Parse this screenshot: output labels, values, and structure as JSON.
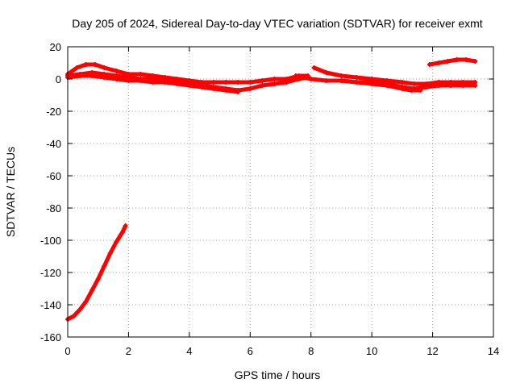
{
  "chart_data": {
    "type": "scatter",
    "title": "Day 205 of 2024, Sidereal Day-to-day VTEC variation (SDTVAR) for receiver exmt",
    "xlabel": "GPS time / hours",
    "ylabel": "SDTVAR / TECUs",
    "xlim": [
      0,
      14
    ],
    "ylim": [
      -160,
      20
    ],
    "xticks": [
      0,
      2,
      4,
      6,
      8,
      10,
      12,
      14
    ],
    "yticks": [
      20,
      0,
      -20,
      -40,
      -60,
      -80,
      -100,
      -120,
      -140,
      -160
    ],
    "grid": true,
    "marker_color": "#ff0000",
    "series": [
      {
        "name": "upper-band-a",
        "x": [
          0,
          0.3,
          0.6,
          0.9,
          1.2,
          1.6,
          2.0,
          2.4,
          2.8,
          3.2,
          3.6,
          4.0,
          4.4,
          4.8,
          5.2,
          5.6,
          6.0,
          6.4,
          6.8,
          7.2,
          7.6,
          7.9
        ],
        "y": [
          3,
          7,
          9,
          9,
          7,
          5,
          3,
          3,
          2,
          1,
          0,
          -1,
          -2,
          -2,
          -2,
          -2,
          -2,
          -1,
          0,
          0,
          2,
          2
        ]
      },
      {
        "name": "upper-band-b",
        "x": [
          0,
          0.4,
          0.8,
          1.2,
          1.6,
          2.0,
          2.4,
          2.8,
          3.2,
          3.6,
          4.0,
          4.4,
          4.8,
          5.2,
          5.6,
          6.0,
          6.4,
          6.8,
          7.2,
          7.6,
          7.9
        ],
        "y": [
          2,
          3,
          4,
          3,
          2,
          1,
          0,
          0,
          -1,
          -2,
          -3,
          -4,
          -5,
          -6,
          -7,
          -6,
          -4,
          -3,
          -2,
          0,
          1
        ]
      },
      {
        "name": "upper-band-c",
        "x": [
          0,
          0.4,
          0.8,
          1.2,
          1.6,
          2.0,
          2.4,
          2.8,
          3.2,
          3.6,
          4.0,
          4.4,
          4.8,
          5.2,
          5.6
        ],
        "y": [
          1,
          2,
          2,
          1,
          0,
          -1,
          -1,
          -2,
          -2,
          -3,
          -4,
          -5,
          -6,
          -7,
          -8
        ]
      },
      {
        "name": "mid-band-a",
        "x": [
          7.5,
          8.0,
          8.5,
          9.0,
          9.5,
          10.0,
          10.5,
          11.0,
          11.4,
          11.8,
          12.2,
          12.6,
          13.0,
          13.4
        ],
        "y": [
          2,
          0,
          -1,
          -1,
          -2,
          -2,
          -3,
          -5,
          -6,
          -5,
          -4,
          -4,
          -4,
          -4
        ]
      },
      {
        "name": "mid-band-b",
        "x": [
          8.1,
          8.5,
          9.0,
          9.5,
          10.0,
          10.5,
          11.0,
          11.4,
          11.8,
          12.2,
          12.6,
          13.0,
          13.4
        ],
        "y": [
          7,
          4,
          2,
          1,
          0,
          -1,
          -2,
          -3,
          -3,
          -2,
          -2,
          -2,
          -2
        ]
      },
      {
        "name": "mid-band-c",
        "x": [
          9.0,
          9.5,
          10.0,
          10.5,
          11.0,
          11.3,
          11.6
        ],
        "y": [
          -1,
          -2,
          -3,
          -4,
          -6,
          -7,
          -7
        ]
      },
      {
        "name": "late-arc",
        "x": [
          11.9,
          12.2,
          12.5,
          12.8,
          13.1,
          13.4
        ],
        "y": [
          9,
          10,
          11,
          12,
          12,
          11
        ]
      },
      {
        "name": "descending-arc",
        "x": [
          0,
          0.2,
          0.4,
          0.6,
          0.8,
          1.0,
          1.2,
          1.4,
          1.6,
          1.8,
          1.9
        ],
        "y": [
          -149,
          -147,
          -143,
          -138,
          -131,
          -124,
          -116,
          -108,
          -101,
          -95,
          -91
        ]
      }
    ]
  }
}
